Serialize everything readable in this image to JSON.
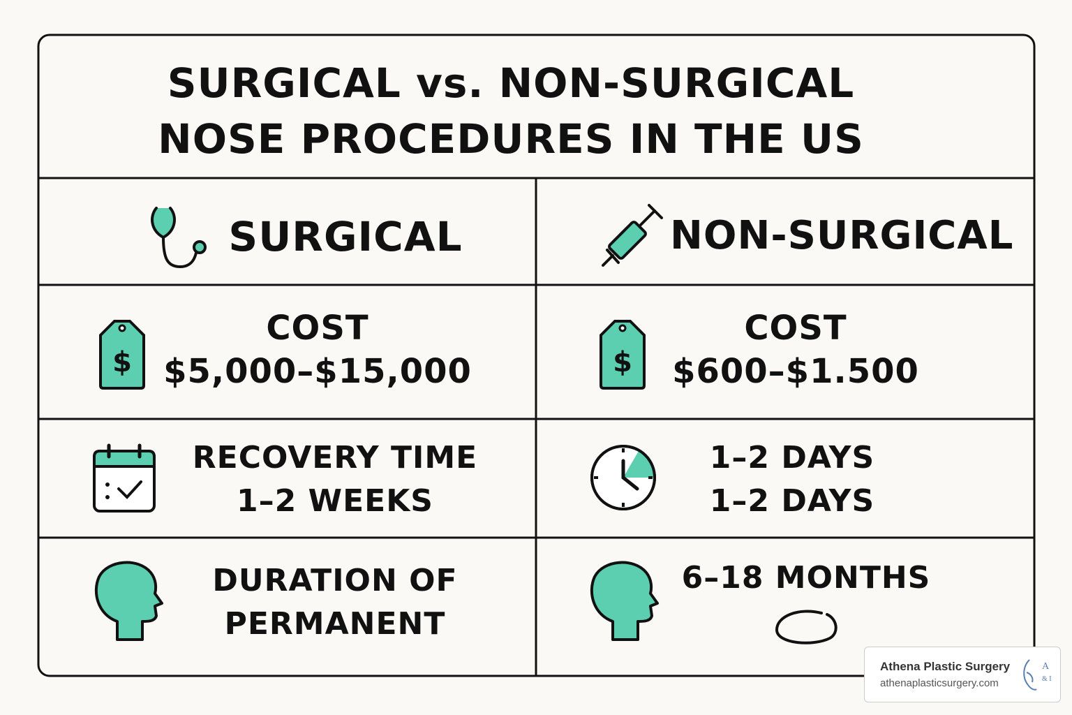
{
  "header": {
    "title": [
      "SURGICAL vs. NON-SURGICAL",
      "NOSE PROCEDURES IN THE US"
    ]
  },
  "table": {
    "columns": [
      "SURGICAL",
      "NON-SURGICAL"
    ],
    "rows": [
      [
        [
          "COST",
          "$5,000–$15,000"
        ],
        [
          "COST",
          "$600–$1.500"
        ]
      ],
      [
        [
          "RECOVERY TIME",
          "1–2 WEEKS"
        ],
        [
          "1–2 DAYS",
          "1–2 DAYS"
        ]
      ],
      [
        [
          "DURATION OF",
          "PERMANENT"
        ],
        [
          "6–18 MONTHS"
        ]
      ]
    ]
  },
  "watermark": {
    "name": "Athena Plastic Surgery",
    "url": "athenaplasticsurgery.com",
    "logo": [
      "A",
      "& I"
    ]
  }
}
